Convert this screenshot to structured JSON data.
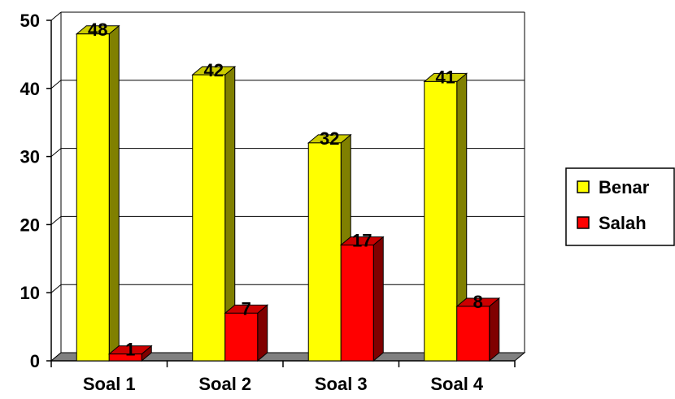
{
  "chart_data": {
    "type": "bar",
    "title": "",
    "xlabel": "",
    "ylabel": "",
    "categories": [
      "Soal 1",
      "Soal 2",
      "Soal 3",
      "Soal 4"
    ],
    "series": [
      {
        "name": "Benar",
        "values": [
          48,
          42,
          32,
          41
        ],
        "color": "#FFFF00",
        "side_color": "#808000",
        "top_color": "#CCCC00"
      },
      {
        "name": "Salah",
        "values": [
          1,
          7,
          17,
          8
        ],
        "color": "#FF0000",
        "side_color": "#800000",
        "top_color": "#CC0000"
      }
    ],
    "ylim": [
      0,
      50
    ],
    "yticks": [
      0,
      10,
      20,
      30,
      40,
      50
    ],
    "grid": true,
    "legend_position": "right",
    "style": "3d-column"
  }
}
